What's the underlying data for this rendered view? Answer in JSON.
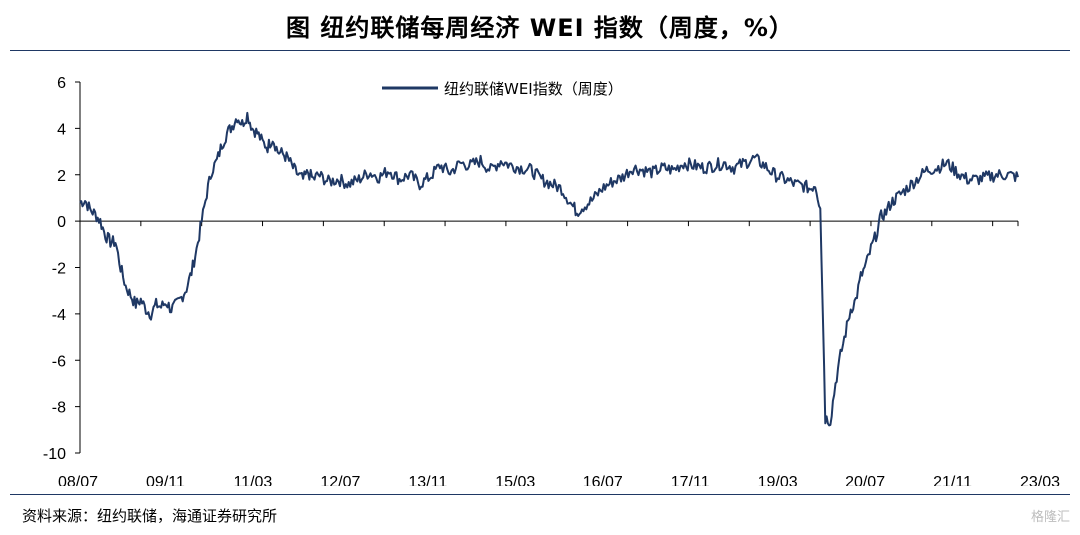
{
  "header": {
    "title": "图  纽约联储每周经济 WEI 指数（周度，%）"
  },
  "footer": {
    "source": "资料来源：纽约联储，海通证券研究所",
    "watermark": "格隆汇"
  },
  "colors": {
    "line": "#1f3864",
    "rule": "#1f3864",
    "axis": "#000000"
  },
  "chart_data": {
    "type": "line",
    "title": "",
    "xlabel": "",
    "ylabel": "",
    "ylim": [
      -10,
      6
    ],
    "yticks": [
      6,
      4,
      2,
      0,
      -2,
      -4,
      -6,
      -8,
      -10
    ],
    "xlim": [
      "2008-01",
      "2023-06"
    ],
    "xticks": [
      "08/07",
      "09/11",
      "11/03",
      "12/07",
      "13/11",
      "15/03",
      "16/07",
      "17/11",
      "19/03",
      "20/07",
      "21/11",
      "23/03"
    ],
    "legend": {
      "position": "top-center"
    },
    "grid": false,
    "series": [
      {
        "name": "纽约联储WEI指数（周度）",
        "points": [
          [
            "2008-01",
            0.8
          ],
          [
            "2008-02",
            0.9
          ],
          [
            "2008-03",
            0.5
          ],
          [
            "2008-04",
            0.3
          ],
          [
            "2008-05",
            0.0
          ],
          [
            "2008-06",
            -0.6
          ],
          [
            "2008-07",
            -0.9
          ],
          [
            "2008-08",
            -0.9
          ],
          [
            "2008-09",
            -2.0
          ],
          [
            "2008-10",
            -2.8
          ],
          [
            "2008-11",
            -3.2
          ],
          [
            "2008-12",
            -3.6
          ],
          [
            "2009-01",
            -3.4
          ],
          [
            "2009-02",
            -3.8
          ],
          [
            "2009-03",
            -4.0
          ],
          [
            "2009-04",
            -3.6
          ],
          [
            "2009-05",
            -3.7
          ],
          [
            "2009-06",
            -3.5
          ],
          [
            "2009-07",
            -3.8
          ],
          [
            "2009-08",
            -3.6
          ],
          [
            "2009-09",
            -3.3
          ],
          [
            "2009-10",
            -2.9
          ],
          [
            "2009-11",
            -2.2
          ],
          [
            "2009-12",
            -1.2
          ],
          [
            "2010-01",
            0.0
          ],
          [
            "2010-02",
            1.2
          ],
          [
            "2010-03",
            2.2
          ],
          [
            "2010-04",
            2.6
          ],
          [
            "2010-05",
            3.3
          ],
          [
            "2010-06",
            3.8
          ],
          [
            "2010-07",
            4.1
          ],
          [
            "2010-08",
            4.5
          ],
          [
            "2010-09",
            4.2
          ],
          [
            "2010-10",
            4.6
          ],
          [
            "2010-11",
            4.0
          ],
          [
            "2010-12",
            3.8
          ],
          [
            "2011-01",
            3.4
          ],
          [
            "2011-02",
            3.2
          ],
          [
            "2011-03",
            3.6
          ],
          [
            "2011-04",
            3.0
          ],
          [
            "2011-05",
            2.9
          ],
          [
            "2011-06",
            2.7
          ],
          [
            "2011-07",
            2.3
          ],
          [
            "2011-08",
            2.0
          ],
          [
            "2011-09",
            1.8
          ],
          [
            "2011-10",
            2.1
          ],
          [
            "2011-11",
            1.8
          ],
          [
            "2011-12",
            2.0
          ],
          [
            "2012-02",
            1.7
          ],
          [
            "2012-04",
            1.8
          ],
          [
            "2012-06",
            1.6
          ],
          [
            "2012-08",
            1.8
          ],
          [
            "2012-10",
            2.1
          ],
          [
            "2012-12",
            1.9
          ],
          [
            "2013-02",
            2.2
          ],
          [
            "2013-04",
            1.8
          ],
          [
            "2013-06",
            2.0
          ],
          [
            "2013-08",
            1.6
          ],
          [
            "2013-10",
            1.9
          ],
          [
            "2013-12",
            2.4
          ],
          [
            "2014-02",
            2.1
          ],
          [
            "2014-04",
            2.5
          ],
          [
            "2014-06",
            2.4
          ],
          [
            "2014-08",
            2.6
          ],
          [
            "2014-10",
            2.2
          ],
          [
            "2014-12",
            2.6
          ],
          [
            "2015-02",
            2.4
          ],
          [
            "2015-04",
            2.3
          ],
          [
            "2015-06",
            2.2
          ],
          [
            "2015-08",
            1.8
          ],
          [
            "2015-10",
            1.6
          ],
          [
            "2015-12",
            1.4
          ],
          [
            "2016-02",
            0.7
          ],
          [
            "2016-03",
            0.4
          ],
          [
            "2016-04",
            0.6
          ],
          [
            "2016-06",
            0.9
          ],
          [
            "2016-08",
            1.4
          ],
          [
            "2016-10",
            1.7
          ],
          [
            "2016-12",
            1.9
          ],
          [
            "2017-02",
            2.3
          ],
          [
            "2017-04",
            2.2
          ],
          [
            "2017-06",
            2.1
          ],
          [
            "2017-08",
            2.3
          ],
          [
            "2017-10",
            2.2
          ],
          [
            "2017-12",
            2.5
          ],
          [
            "2018-02",
            2.4
          ],
          [
            "2018-04",
            2.3
          ],
          [
            "2018-06",
            2.4
          ],
          [
            "2018-08",
            2.5
          ],
          [
            "2018-10",
            2.3
          ],
          [
            "2018-12",
            2.5
          ],
          [
            "2019-02",
            2.7
          ],
          [
            "2019-04",
            2.4
          ],
          [
            "2019-06",
            2.0
          ],
          [
            "2019-08",
            1.8
          ],
          [
            "2019-10",
            1.6
          ],
          [
            "2019-12",
            1.5
          ],
          [
            "2020-01",
            1.4
          ],
          [
            "2020-02",
            1.6
          ],
          [
            "2020-03",
            0.6
          ],
          [
            "2020-04",
            -8.5
          ],
          [
            "2020-05",
            -8.6
          ],
          [
            "2020-06",
            -7.0
          ],
          [
            "2020-07",
            -5.8
          ],
          [
            "2020-08",
            -4.8
          ],
          [
            "2020-09",
            -3.8
          ],
          [
            "2020-10",
            -3.4
          ],
          [
            "2020-11",
            -2.4
          ],
          [
            "2020-12",
            -1.9
          ],
          [
            "2021-01",
            -1.2
          ],
          [
            "2021-02",
            -0.6
          ],
          [
            "2021-03",
            0.2
          ],
          [
            "2021-04",
            0.4
          ],
          [
            "2021-05",
            0.8
          ],
          [
            "2021-06",
            1.0
          ],
          [
            "2021-08",
            1.4
          ],
          [
            "2021-10",
            1.8
          ],
          [
            "2021-12",
            2.2
          ],
          [
            "2022-02",
            2.3
          ],
          [
            "2022-04",
            2.5
          ],
          [
            "2022-06",
            2.1
          ],
          [
            "2022-08",
            1.8
          ],
          [
            "2022-10",
            1.8
          ],
          [
            "2022-12",
            1.9
          ],
          [
            "2023-02",
            2.0
          ],
          [
            "2023-04",
            2.0
          ],
          [
            "2023-06",
            1.9
          ]
        ]
      }
    ]
  }
}
